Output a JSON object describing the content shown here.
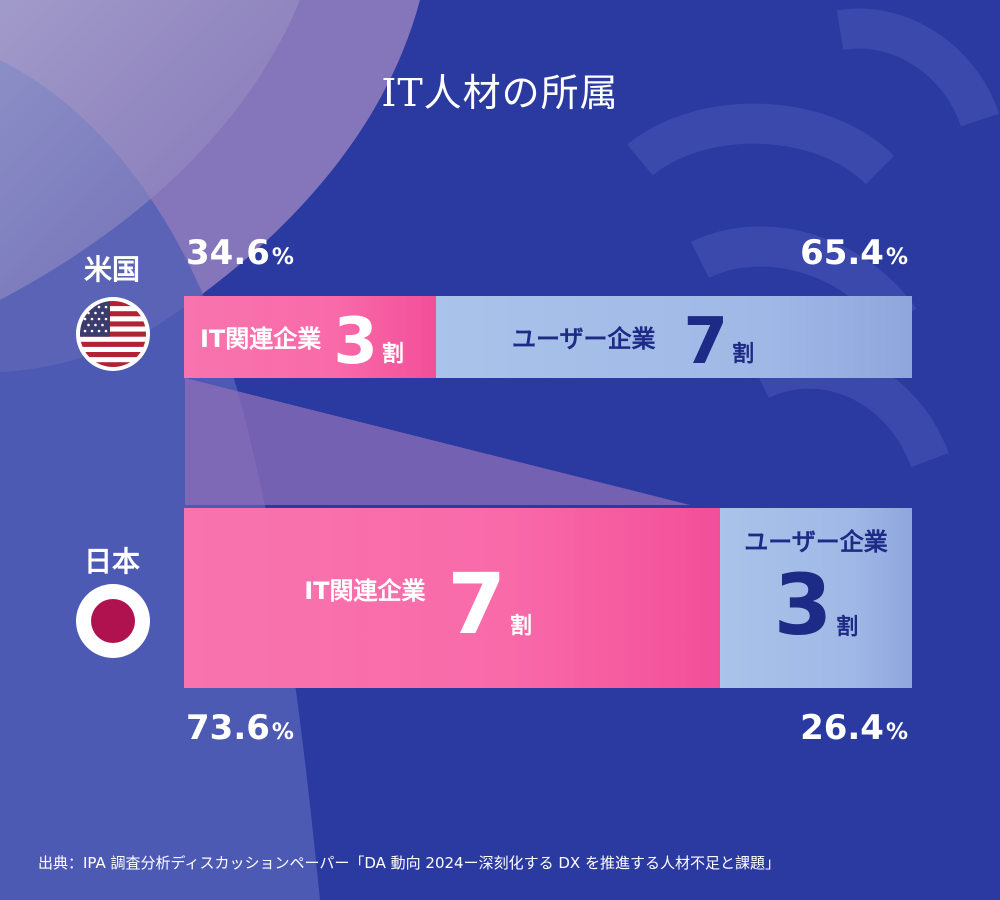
{
  "title": "IT人材の所属",
  "source": "出典：IPA 調査分析ディスカッションペーパー「DA 動向 2024ー深刻化する DX を推進する人材不足と課題」",
  "colors": {
    "it": "#f96aa9",
    "user": "#9fb8e6",
    "navy": "#1d2a86",
    "background": "#2b3a99"
  },
  "chart_data": {
    "type": "bar",
    "orientation": "horizontal-stacked-100",
    "title": "IT人材の所属",
    "categories": [
      "米国",
      "日本"
    ],
    "series": [
      {
        "name": "IT関連企業",
        "values": [
          34.6,
          73.6
        ],
        "labels": [
          "3",
          "7"
        ]
      },
      {
        "name": "ユーザー企業",
        "values": [
          65.4,
          26.4
        ],
        "labels": [
          "7",
          "3"
        ]
      }
    ],
    "value_unit": "%",
    "label_unit": "割",
    "flags": [
      "us-flag-icon",
      "japan-flag-icon"
    ]
  }
}
